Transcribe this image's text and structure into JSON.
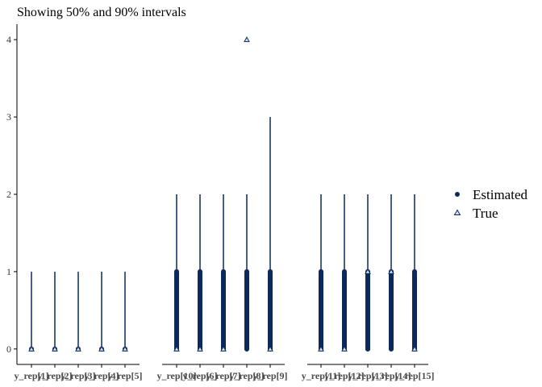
{
  "chart_data": {
    "type": "interval",
    "title": "Showing 50% and 90% intervals",
    "xlabel": "",
    "ylabel": "",
    "ylim": [
      -0.2,
      4.2
    ],
    "yticks": [
      0,
      1,
      2,
      3,
      4
    ],
    "legend": {
      "position": "right",
      "entries": [
        {
          "label": "Estimated",
          "shape": "circle"
        },
        {
          "label": "True",
          "shape": "triangle"
        }
      ]
    },
    "colors": {
      "dark": "#0b2a5b",
      "light": "#d1e1ec",
      "axis": "#000000"
    },
    "groups": [
      {
        "tick_labels": [
          "y_rep[1]",
          "y_rep[2]",
          "y_rep[3]",
          "y_rep[4]",
          "y_rep[5]"
        ],
        "items": [
          {
            "name": "y_rep[1]",
            "estimated": 0,
            "ci50": [
              0,
              0
            ],
            "ci90": [
              0,
              1
            ],
            "true": 0
          },
          {
            "name": "y_rep[2]",
            "estimated": 0,
            "ci50": [
              0,
              0
            ],
            "ci90": [
              0,
              1
            ],
            "true": 0
          },
          {
            "name": "y_rep[3]",
            "estimated": 0,
            "ci50": [
              0,
              0
            ],
            "ci90": [
              0,
              1
            ],
            "true": 0
          },
          {
            "name": "y_rep[4]",
            "estimated": 0,
            "ci50": [
              0,
              0
            ],
            "ci90": [
              0,
              1
            ],
            "true": 0
          },
          {
            "name": "y_rep[5]",
            "estimated": 0,
            "ci50": [
              0,
              0
            ],
            "ci90": [
              0,
              1
            ],
            "true": 0
          }
        ]
      },
      {
        "tick_labels": [
          "y_rep[10]",
          "y_rep[6]",
          "y_rep[7]",
          "y_rep[8]",
          "y_rep[9]"
        ],
        "items": [
          {
            "name": "y_rep[10]",
            "estimated": 0,
            "ci50": [
              0,
              1
            ],
            "ci90": [
              0,
              2
            ],
            "true": 0
          },
          {
            "name": "y_rep[6]",
            "estimated": 0,
            "ci50": [
              0,
              1
            ],
            "ci90": [
              0,
              2
            ],
            "true": 0
          },
          {
            "name": "y_rep[7]",
            "estimated": 0,
            "ci50": [
              0,
              1
            ],
            "ci90": [
              0,
              2
            ],
            "true": 0
          },
          {
            "name": "y_rep[8]",
            "estimated": 0,
            "ci50": [
              0,
              1
            ],
            "ci90": [
              0,
              2
            ],
            "true": 4
          },
          {
            "name": "y_rep[9]",
            "estimated": 0,
            "ci50": [
              0,
              1
            ],
            "ci90": [
              0,
              3
            ],
            "true": 0
          }
        ]
      },
      {
        "tick_labels": [
          "y_rep[11]",
          "y_rep[12]",
          "y_rep[13]",
          "y_rep[14]",
          "y_rep[15]"
        ],
        "items": [
          {
            "name": "y_rep[11]",
            "estimated": 0,
            "ci50": [
              0,
              1
            ],
            "ci90": [
              0,
              2
            ],
            "true": 0
          },
          {
            "name": "y_rep[12]",
            "estimated": 0,
            "ci50": [
              0,
              1
            ],
            "ci90": [
              0,
              2
            ],
            "true": 0
          },
          {
            "name": "y_rep[13]",
            "estimated": 0,
            "ci50": [
              0,
              1
            ],
            "ci90": [
              0,
              2
            ],
            "true": 1
          },
          {
            "name": "y_rep[14]",
            "estimated": 0,
            "ci50": [
              0,
              1
            ],
            "ci90": [
              0,
              2
            ],
            "true": 1
          },
          {
            "name": "y_rep[15]",
            "estimated": 0,
            "ci50": [
              0,
              1
            ],
            "ci90": [
              0,
              2
            ],
            "true": 0
          }
        ]
      }
    ]
  }
}
